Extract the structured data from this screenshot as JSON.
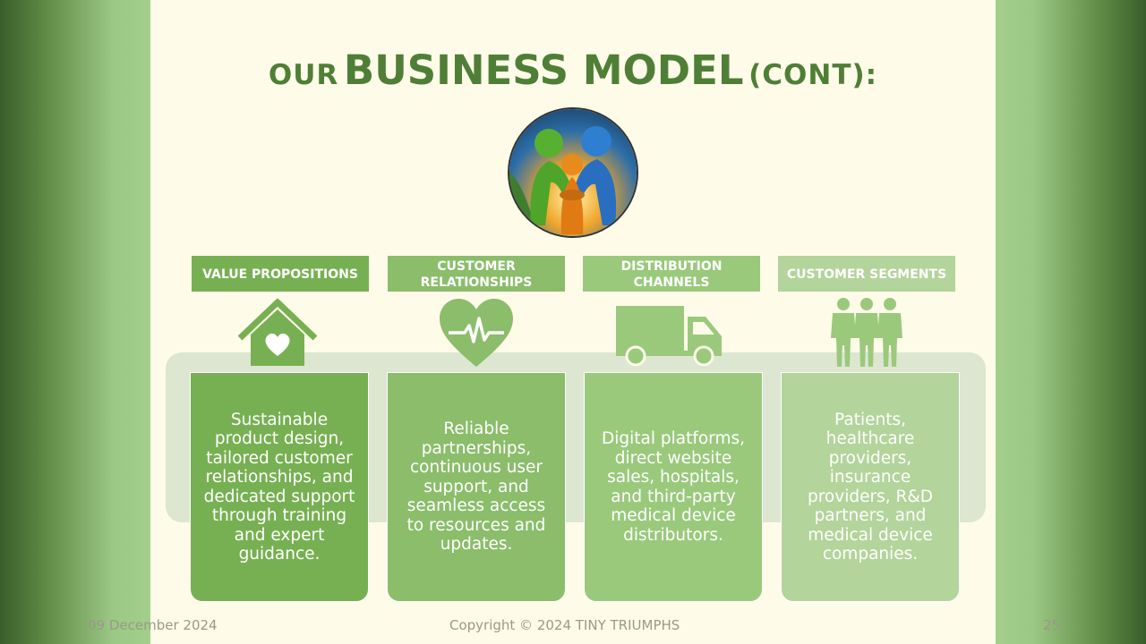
{
  "title": {
    "prefix": "OUR",
    "main": "BUSINESS MODEL",
    "suffix": "(CONT):"
  },
  "columns": [
    {
      "header": "VALUE PROPOSITIONS",
      "icon": "house-heart-icon",
      "color": "#77b052",
      "text": "Sustainable product design, tailored customer relationships, and dedicated support through training and expert guidance."
    },
    {
      "header": "CUSTOMER RELATIONSHIPS",
      "icon": "heartbeat-icon",
      "color": "#8bbd6b",
      "text": "Reliable partnerships, continuous user support, and seamless access to resources and updates."
    },
    {
      "header": "DISTRIBUTION CHANNELS",
      "icon": "truck-icon",
      "color": "#9ac97c",
      "text": "Digital platforms, direct website sales, hospitals, and third-party medical device distributors."
    },
    {
      "header": "CUSTOMER SEGMENTS",
      "icon": "people-group-icon",
      "color": "#b3d49b",
      "text": "Patients, healthcare providers, insurance providers, R&D partners, and medical device companies."
    }
  ],
  "footer": {
    "date": "09 December 2024",
    "copyright": "Copyright © 2024 TINY TRIUMPHS",
    "page": "25"
  }
}
